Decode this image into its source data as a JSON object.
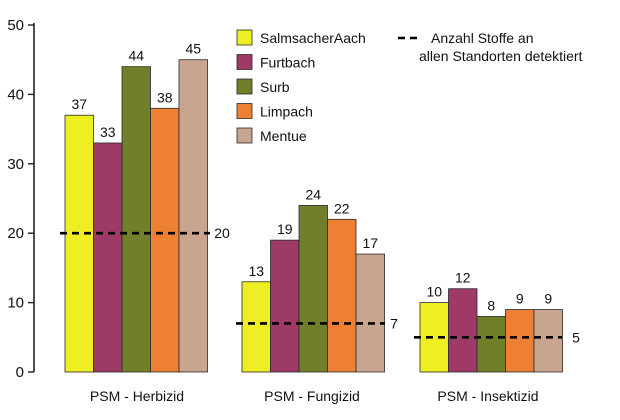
{
  "chart_data": {
    "type": "bar",
    "categories": [
      "PSM - Herbizid",
      "PSM - Fungizid",
      "PSM - Insektizid"
    ],
    "series": [
      {
        "name": "SalmsacherAach",
        "color": "#eeee22",
        "values": [
          37,
          13,
          10
        ]
      },
      {
        "name": "Furtbach",
        "color": "#9e3a66",
        "values": [
          33,
          19,
          12
        ]
      },
      {
        "name": "Surb",
        "color": "#6f7f2a",
        "values": [
          44,
          24,
          8
        ]
      },
      {
        "name": "Limpach",
        "color": "#ee8033",
        "values": [
          38,
          22,
          9
        ]
      },
      {
        "name": "Mentue",
        "color": "#c9a48e",
        "values": [
          45,
          17,
          9
        ]
      }
    ],
    "reference": {
      "name": "Anzahl Stoffe an allen Standorten detektiert",
      "name_lines": [
        "Anzahl Stoffe an",
        "allen Standorten detektiert"
      ],
      "values": [
        20,
        7,
        5
      ],
      "style": "dashed"
    },
    "ylim": [
      0,
      50
    ],
    "yticks": [
      0,
      10,
      20,
      30,
      40,
      50
    ],
    "legend_position": "top-right",
    "grid": false
  }
}
